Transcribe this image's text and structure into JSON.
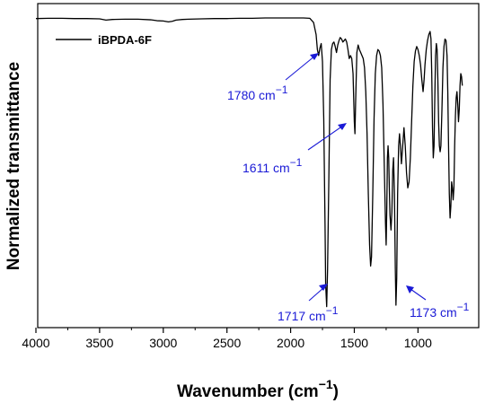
{
  "chart_data": {
    "type": "line",
    "xlabel": "Wavenumber (cm",
    "xlabel_sup": "−1",
    "xlabel_close": ")",
    "ylabel": "Normalized transmittance",
    "xlim": [
      4000,
      650
    ],
    "x_reversed": true,
    "ylim": [
      0,
      1
    ],
    "grid": false,
    "legend_position": "top-left",
    "x_ticks": [
      4000,
      3500,
      3000,
      2500,
      2000,
      1500,
      1000
    ],
    "series": [
      {
        "name": "iBPDA-6F",
        "color": "#000000",
        "points": [
          [
            4000,
            0.983
          ],
          [
            3900,
            0.984
          ],
          [
            3800,
            0.984
          ],
          [
            3700,
            0.983
          ],
          [
            3600,
            0.983
          ],
          [
            3500,
            0.982
          ],
          [
            3450,
            0.978
          ],
          [
            3400,
            0.98
          ],
          [
            3300,
            0.981
          ],
          [
            3200,
            0.981
          ],
          [
            3100,
            0.979
          ],
          [
            3050,
            0.976
          ],
          [
            3000,
            0.975
          ],
          [
            2960,
            0.972
          ],
          [
            2930,
            0.974
          ],
          [
            2900,
            0.978
          ],
          [
            2850,
            0.98
          ],
          [
            2800,
            0.981
          ],
          [
            2700,
            0.982
          ],
          [
            2600,
            0.983
          ],
          [
            2500,
            0.983
          ],
          [
            2400,
            0.984
          ],
          [
            2300,
            0.984
          ],
          [
            2200,
            0.985
          ],
          [
            2100,
            0.985
          ],
          [
            2000,
            0.985
          ],
          [
            1900,
            0.985
          ],
          [
            1850,
            0.984
          ],
          [
            1820,
            0.97
          ],
          [
            1800,
            0.93
          ],
          [
            1790,
            0.88
          ],
          [
            1780,
            0.86
          ],
          [
            1770,
            0.885
          ],
          [
            1760,
            0.9
          ],
          [
            1750,
            0.84
          ],
          [
            1740,
            0.65
          ],
          [
            1730,
            0.3
          ],
          [
            1725,
            0.1
          ],
          [
            1717,
            0.025
          ],
          [
            1710,
            0.15
          ],
          [
            1700,
            0.45
          ],
          [
            1690,
            0.78
          ],
          [
            1680,
            0.88
          ],
          [
            1670,
            0.9
          ],
          [
            1660,
            0.905
          ],
          [
            1650,
            0.89
          ],
          [
            1640,
            0.87
          ],
          [
            1630,
            0.895
          ],
          [
            1620,
            0.91
          ],
          [
            1611,
            0.92
          ],
          [
            1600,
            0.915
          ],
          [
            1590,
            0.905
          ],
          [
            1580,
            0.91
          ],
          [
            1570,
            0.915
          ],
          [
            1560,
            0.905
          ],
          [
            1550,
            0.88
          ],
          [
            1540,
            0.85
          ],
          [
            1530,
            0.86
          ],
          [
            1520,
            0.85
          ],
          [
            1510,
            0.8
          ],
          [
            1500,
            0.64
          ],
          [
            1495,
            0.6
          ],
          [
            1490,
            0.7
          ],
          [
            1480,
            0.87
          ],
          [
            1470,
            0.895
          ],
          [
            1460,
            0.88
          ],
          [
            1450,
            0.87
          ],
          [
            1440,
            0.86
          ],
          [
            1430,
            0.85
          ],
          [
            1420,
            0.82
          ],
          [
            1410,
            0.74
          ],
          [
            1400,
            0.6
          ],
          [
            1390,
            0.4
          ],
          [
            1380,
            0.23
          ],
          [
            1372,
            0.16
          ],
          [
            1365,
            0.19
          ],
          [
            1355,
            0.4
          ],
          [
            1345,
            0.65
          ],
          [
            1335,
            0.8
          ],
          [
            1325,
            0.86
          ],
          [
            1315,
            0.88
          ],
          [
            1305,
            0.875
          ],
          [
            1295,
            0.86
          ],
          [
            1285,
            0.82
          ],
          [
            1275,
            0.7
          ],
          [
            1265,
            0.5
          ],
          [
            1255,
            0.3
          ],
          [
            1250,
            0.23
          ],
          [
            1245,
            0.35
          ],
          [
            1240,
            0.52
          ],
          [
            1235,
            0.56
          ],
          [
            1230,
            0.52
          ],
          [
            1225,
            0.42
          ],
          [
            1220,
            0.33
          ],
          [
            1212,
            0.28
          ],
          [
            1205,
            0.34
          ],
          [
            1198,
            0.48
          ],
          [
            1192,
            0.52
          ],
          [
            1185,
            0.4
          ],
          [
            1178,
            0.15
          ],
          [
            1173,
            0.03
          ],
          [
            1167,
            0.12
          ],
          [
            1160,
            0.4
          ],
          [
            1152,
            0.56
          ],
          [
            1145,
            0.6
          ],
          [
            1138,
            0.56
          ],
          [
            1130,
            0.5
          ],
          [
            1120,
            0.56
          ],
          [
            1110,
            0.62
          ],
          [
            1100,
            0.56
          ],
          [
            1090,
            0.47
          ],
          [
            1080,
            0.42
          ],
          [
            1070,
            0.44
          ],
          [
            1060,
            0.52
          ],
          [
            1050,
            0.64
          ],
          [
            1040,
            0.76
          ],
          [
            1030,
            0.84
          ],
          [
            1020,
            0.875
          ],
          [
            1010,
            0.89
          ],
          [
            1000,
            0.88
          ],
          [
            990,
            0.86
          ],
          [
            980,
            0.83
          ],
          [
            970,
            0.78
          ],
          [
            960,
            0.74
          ],
          [
            952,
            0.78
          ],
          [
            945,
            0.83
          ],
          [
            935,
            0.88
          ],
          [
            925,
            0.91
          ],
          [
            915,
            0.93
          ],
          [
            905,
            0.94
          ],
          [
            898,
            0.915
          ],
          [
            892,
            0.8
          ],
          [
            886,
            0.62
          ],
          [
            880,
            0.52
          ],
          [
            874,
            0.56
          ],
          [
            868,
            0.72
          ],
          [
            862,
            0.86
          ],
          [
            856,
            0.9
          ],
          [
            850,
            0.88
          ],
          [
            844,
            0.78
          ],
          [
            838,
            0.64
          ],
          [
            832,
            0.56
          ],
          [
            826,
            0.54
          ],
          [
            820,
            0.56
          ],
          [
            812,
            0.68
          ],
          [
            804,
            0.82
          ],
          [
            796,
            0.89
          ],
          [
            788,
            0.915
          ],
          [
            780,
            0.91
          ],
          [
            772,
            0.86
          ],
          [
            766,
            0.74
          ],
          [
            760,
            0.56
          ],
          [
            754,
            0.4
          ],
          [
            748,
            0.32
          ],
          [
            742,
            0.36
          ],
          [
            736,
            0.44
          ],
          [
            730,
            0.42
          ],
          [
            724,
            0.38
          ],
          [
            718,
            0.42
          ],
          [
            712,
            0.56
          ],
          [
            706,
            0.66
          ],
          [
            700,
            0.72
          ],
          [
            694,
            0.74
          ],
          [
            688,
            0.7
          ],
          [
            682,
            0.64
          ],
          [
            676,
            0.68
          ],
          [
            670,
            0.76
          ],
          [
            664,
            0.8
          ],
          [
            658,
            0.79
          ],
          [
            652,
            0.76
          ]
        ]
      }
    ],
    "annotations": [
      {
        "text": "1780 cm",
        "sup": "−1",
        "x": 1780
      },
      {
        "text": "1611 cm",
        "sup": "−1",
        "x": 1611
      },
      {
        "text": "1717 cm",
        "sup": "−1",
        "x": 1717
      },
      {
        "text": "1173 cm",
        "sup": "−1",
        "x": 1173
      }
    ],
    "annotation_color": "#1a1ad6"
  }
}
